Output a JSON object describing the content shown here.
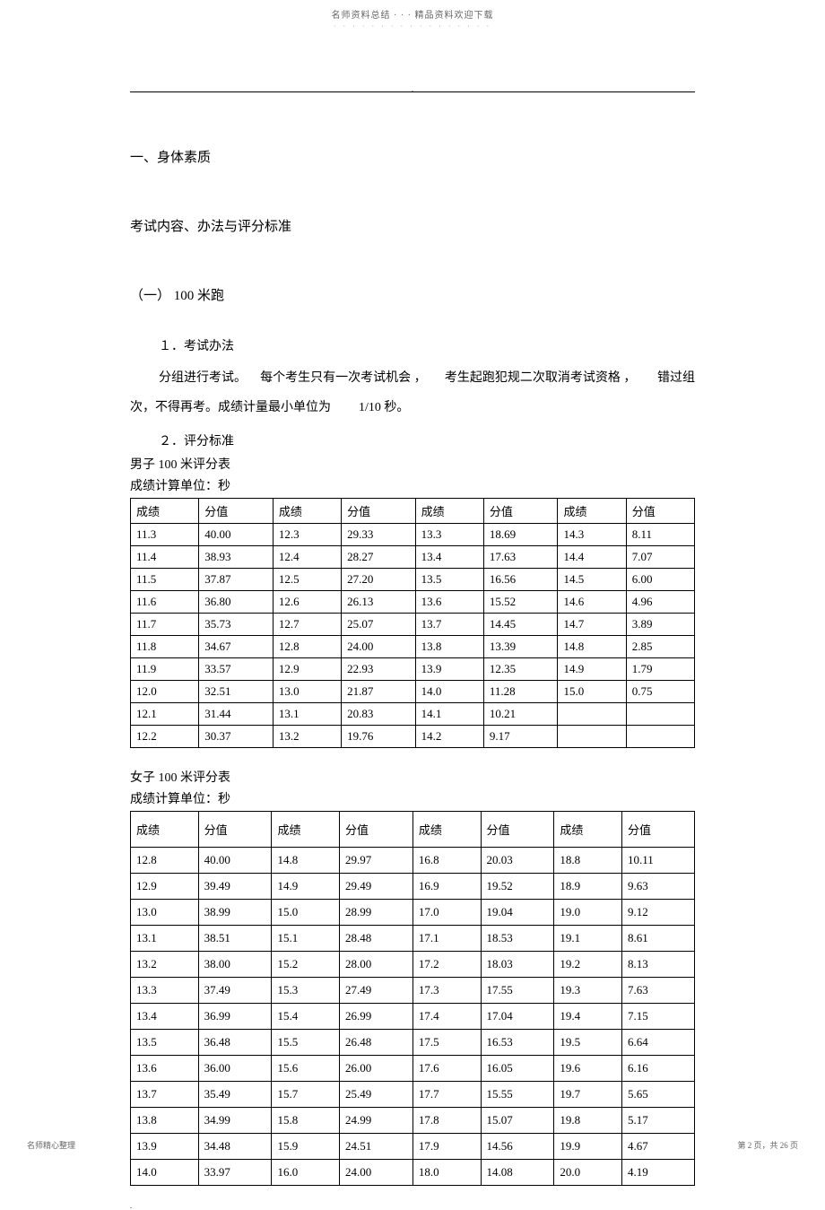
{
  "header": {
    "title": "名师资料总结 · · · 精品资料欢迎下载",
    "dots": "· · · · · · · · · · · · · · · · ·"
  },
  "section1": {
    "title": "一、身体素质",
    "subtitle": "考试内容、办法与评分标准",
    "item1_title": "（一） 100 米跑",
    "method_label": "１．考试办法",
    "method_text_line1_part1": "分组进行考试。",
    "method_text_line1_part2": "每个考生只有一次考试机会 ，",
    "method_text_line1_part3": "考生起跑犯规二次取消考试资格 ，",
    "method_text_line1_part4": "错过组",
    "method_text_line2_part1": "次，不得再考。成绩计量最小单位为",
    "method_text_line2_part2": "1/10 秒。",
    "standard_label": "２．评分标准"
  },
  "table_male": {
    "title": "男子 100 米评分表",
    "unit": "成绩计算单位：秒",
    "headers": [
      "成绩",
      "分值",
      "成绩",
      "分值",
      "成绩",
      "分值",
      "成绩",
      "分值"
    ],
    "rows": [
      [
        "11.3",
        "40.00",
        "12.3",
        "29.33",
        "13.3",
        "18.69",
        "14.3",
        "8.11"
      ],
      [
        "11.4",
        "38.93",
        "12.4",
        "28.27",
        "13.4",
        "17.63",
        "14.4",
        "7.07"
      ],
      [
        "11.5",
        "37.87",
        "12.5",
        "27.20",
        "13.5",
        "16.56",
        "14.5",
        "6.00"
      ],
      [
        "11.6",
        "36.80",
        "12.6",
        "26.13",
        "13.6",
        "15.52",
        "14.6",
        "4.96"
      ],
      [
        "11.7",
        "35.73",
        "12.7",
        "25.07",
        "13.7",
        "14.45",
        "14.7",
        "3.89"
      ],
      [
        "11.8",
        "34.67",
        "12.8",
        "24.00",
        "13.8",
        "13.39",
        "14.8",
        "2.85"
      ],
      [
        "11.9",
        "33.57",
        "12.9",
        "22.93",
        "13.9",
        "12.35",
        "14.9",
        "1.79"
      ],
      [
        "12.0",
        "32.51",
        "13.0",
        "21.87",
        "14.0",
        "11.28",
        "15.0",
        "0.75"
      ],
      [
        "12.1",
        "31.44",
        "13.1",
        "20.83",
        "14.1",
        "10.21",
        "",
        ""
      ],
      [
        "12.2",
        "30.37",
        "13.2",
        "19.76",
        "14.2",
        "9.17",
        "",
        ""
      ]
    ]
  },
  "table_female": {
    "title": "女子 100 米评分表",
    "unit": "成绩计算单位：秒",
    "headers": [
      "成绩",
      "分值",
      "成绩",
      "分值",
      "成绩",
      "分值",
      "成绩",
      "分值"
    ],
    "rows": [
      [
        "12.8",
        "40.00",
        "14.8",
        "29.97",
        "16.8",
        "20.03",
        "18.8",
        "10.11"
      ],
      [
        "12.9",
        "39.49",
        "14.9",
        "29.49",
        "16.9",
        "19.52",
        "18.9",
        "9.63"
      ],
      [
        "13.0",
        "38.99",
        "15.0",
        "28.99",
        "17.0",
        "19.04",
        "19.0",
        "9.12"
      ],
      [
        "13.1",
        "38.51",
        "15.1",
        "28.48",
        "17.1",
        "18.53",
        "19.1",
        "8.61"
      ],
      [
        "13.2",
        "38.00",
        "15.2",
        "28.00",
        "17.2",
        "18.03",
        "19.2",
        "8.13"
      ],
      [
        "13.3",
        "37.49",
        "15.3",
        "27.49",
        "17.3",
        "17.55",
        "19.3",
        "7.63"
      ],
      [
        "13.4",
        "36.99",
        "15.4",
        "26.99",
        "17.4",
        "17.04",
        "19.4",
        "7.15"
      ],
      [
        "13.5",
        "36.48",
        "15.5",
        "26.48",
        "17.5",
        "16.53",
        "19.5",
        "6.64"
      ],
      [
        "13.6",
        "36.00",
        "15.6",
        "26.00",
        "17.6",
        "16.05",
        "19.6",
        "6.16"
      ],
      [
        "13.7",
        "35.49",
        "15.7",
        "25.49",
        "17.7",
        "15.55",
        "19.7",
        "5.65"
      ],
      [
        "13.8",
        "34.99",
        "15.8",
        "24.99",
        "17.8",
        "15.07",
        "19.8",
        "5.17"
      ],
      [
        "13.9",
        "34.48",
        "15.9",
        "24.51",
        "17.9",
        "14.56",
        "19.9",
        "4.67"
      ],
      [
        "14.0",
        "33.97",
        "16.0",
        "24.00",
        "18.0",
        "14.08",
        "20.0",
        "4.19"
      ]
    ]
  },
  "footer": {
    "left": "名师精心整理",
    "right": "第 2 页，共 26 页"
  }
}
